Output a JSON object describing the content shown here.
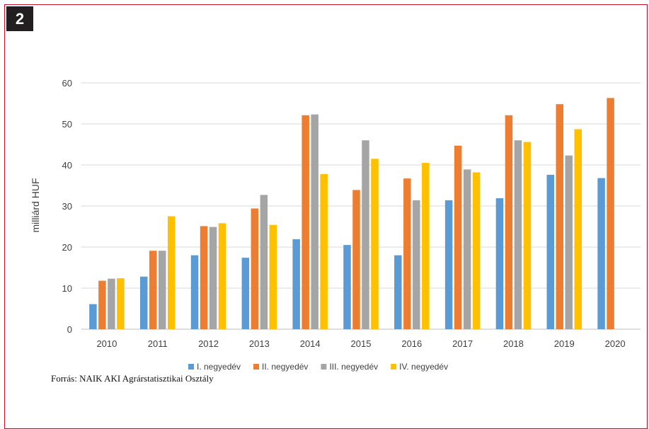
{
  "figure_number": "2",
  "source_note": "Forrás: NAIK AKI Agrárstatisztikai Osztály",
  "chart_data": {
    "type": "bar",
    "ylabel": "milliárd HUF",
    "xlabel": "",
    "ylim": [
      0,
      60
    ],
    "yticks": [
      0,
      10,
      20,
      30,
      40,
      50,
      60
    ],
    "grid": true,
    "legend_position": "bottom",
    "categories": [
      "2010",
      "2011",
      "2012",
      "2013",
      "2014",
      "2015",
      "2016",
      "2017",
      "2018",
      "2019",
      "2020"
    ],
    "series": [
      {
        "name": "I. negyedév",
        "color": "#5b9bd5",
        "values": [
          6.1,
          12.8,
          18.0,
          17.4,
          21.9,
          20.5,
          18.0,
          31.4,
          31.9,
          37.6,
          36.8
        ]
      },
      {
        "name": "II. negyedév",
        "color": "#ed7d31",
        "values": [
          11.8,
          19.1,
          25.1,
          29.4,
          52.1,
          33.9,
          36.7,
          44.7,
          52.1,
          54.8,
          56.3
        ]
      },
      {
        "name": "III. negyedév",
        "color": "#a5a5a5",
        "values": [
          12.3,
          19.1,
          24.9,
          32.7,
          52.3,
          46.0,
          31.4,
          38.9,
          46.0,
          42.3,
          null
        ]
      },
      {
        "name": "IV. negyedév",
        "color": "#ffc000",
        "values": [
          12.4,
          27.5,
          25.8,
          25.4,
          37.8,
          41.5,
          40.5,
          38.2,
          45.6,
          48.7,
          null
        ]
      }
    ]
  }
}
